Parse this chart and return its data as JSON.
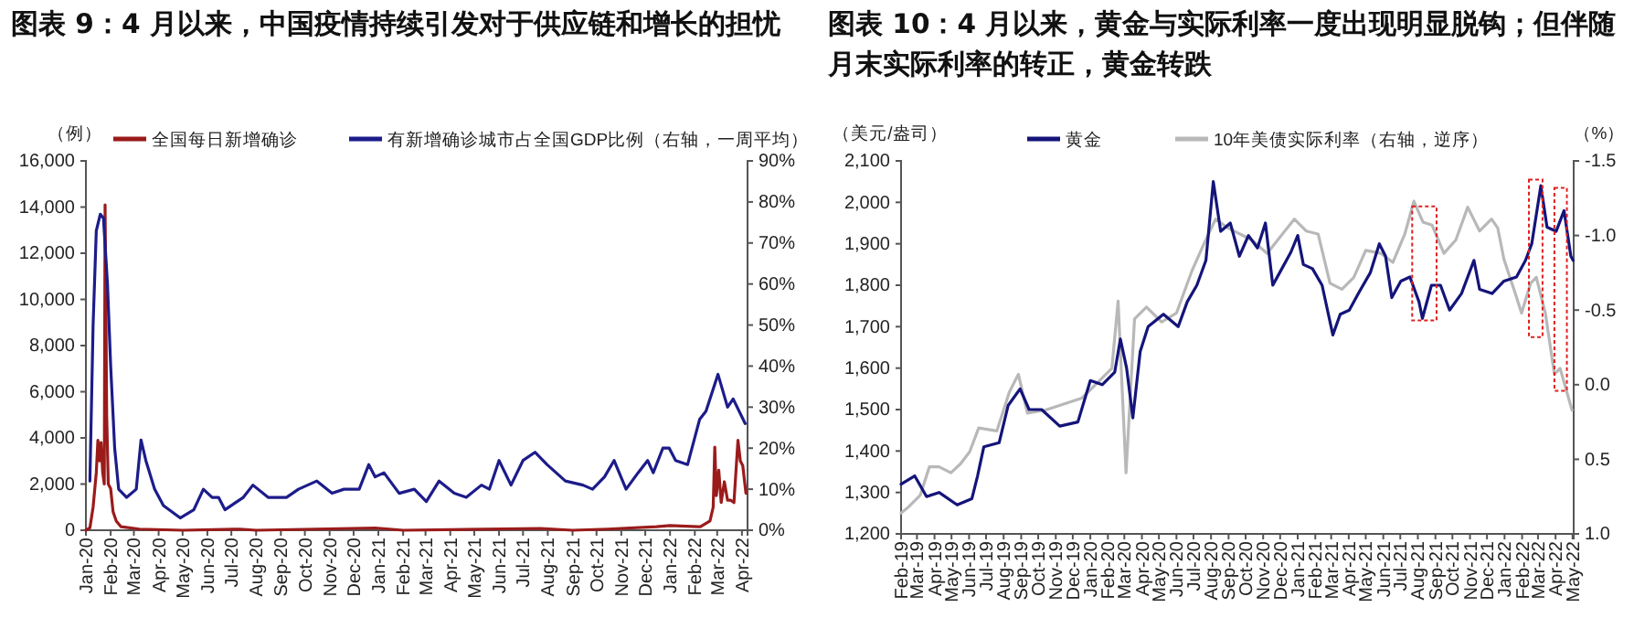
{
  "chart_data": [
    {
      "type": "line",
      "title": "图表 9：4 月以来，中国疫情持续引发对于供应链和增长的担忧",
      "ylabel": "（例）",
      "legend": "top",
      "xlim": [
        "2020-01-01",
        "2022-04-08"
      ],
      "xticks": [
        {
          "value": "2020-01-01",
          "label": "Jan-20"
        },
        {
          "value": "2020-02-01",
          "label": "Feb-20"
        },
        {
          "value": "2020-03-01",
          "label": "Mar-20"
        },
        {
          "value": "2020-04-01",
          "label": "Apr-20"
        },
        {
          "value": "2020-05-01",
          "label": "May-20"
        },
        {
          "value": "2020-06-01",
          "label": "Jun-20"
        },
        {
          "value": "2020-07-01",
          "label": "Jul-20"
        },
        {
          "value": "2020-08-01",
          "label": "Aug-20"
        },
        {
          "value": "2020-09-01",
          "label": "Sep-20"
        },
        {
          "value": "2020-10-01",
          "label": "Oct-20"
        },
        {
          "value": "2020-11-01",
          "label": "Nov-20"
        },
        {
          "value": "2020-12-01",
          "label": "Dec-20"
        },
        {
          "value": "2021-01-01",
          "label": "Jan-21"
        },
        {
          "value": "2021-02-01",
          "label": "Feb-21"
        },
        {
          "value": "2021-03-01",
          "label": "Mar-21"
        },
        {
          "value": "2021-04-01",
          "label": "Apr-21"
        },
        {
          "value": "2021-05-01",
          "label": "May-21"
        },
        {
          "value": "2021-06-01",
          "label": "Jun-21"
        },
        {
          "value": "2021-07-01",
          "label": "Jul-21"
        },
        {
          "value": "2021-08-01",
          "label": "Aug-21"
        },
        {
          "value": "2021-09-01",
          "label": "Sep-21"
        },
        {
          "value": "2021-10-01",
          "label": "Oct-21"
        },
        {
          "value": "2021-11-01",
          "label": "Nov-21"
        },
        {
          "value": "2021-12-01",
          "label": "Dec-21"
        },
        {
          "value": "2022-01-01",
          "label": "Jan-22"
        },
        {
          "value": "2022-02-01",
          "label": "Feb-22"
        },
        {
          "value": "2022-03-01",
          "label": "Mar-22"
        },
        {
          "value": "2022-04-01",
          "label": "Apr-22"
        }
      ],
      "ylim": [
        0,
        16000
      ],
      "yticks": [
        0,
        {
          "value": 2000,
          "label": "2,000"
        },
        {
          "value": 4000,
          "label": "4,000"
        },
        {
          "value": 6000,
          "label": "6,000"
        },
        {
          "value": 8000,
          "label": "8,000"
        },
        {
          "value": 10000,
          "label": "10,000"
        },
        {
          "value": 12000,
          "label": "12,000"
        },
        {
          "value": 14000,
          "label": "14,000"
        },
        {
          "value": 16000,
          "label": "16,000"
        }
      ],
      "y2lim": [
        0,
        90
      ],
      "y2ticks": [
        {
          "value": 0,
          "label": "0%"
        },
        {
          "value": 10,
          "label": "10%"
        },
        {
          "value": 20,
          "label": "20%"
        },
        {
          "value": 30,
          "label": "30%"
        },
        {
          "value": 40,
          "label": "40%"
        },
        {
          "value": 50,
          "label": "50%"
        },
        {
          "value": 60,
          "label": "60%"
        },
        {
          "value": 70,
          "label": "70%"
        },
        {
          "value": 80,
          "label": "80%"
        },
        {
          "value": 90,
          "label": "90%"
        }
      ],
      "series": [
        {
          "name": "全国每日新增确诊",
          "color": "#9b1b1b",
          "x": [
            "2020-01-01",
            "2020-01-06",
            "2020-01-10",
            "2020-01-14",
            "2020-01-16",
            "2020-01-18",
            "2020-01-20",
            "2020-01-22",
            "2020-01-24",
            "2020-01-25",
            "2020-01-27",
            "2020-01-29",
            "2020-02-01",
            "2020-02-04",
            "2020-02-08",
            "2020-02-14",
            "2020-03-08",
            "2020-05-01",
            "2020-07-12",
            "2020-08-01",
            "2020-12-28",
            "2021-02-01",
            "2021-07-23",
            "2021-09-01",
            "2021-10-15",
            "2021-12-15",
            "2022-01-01",
            "2022-02-08",
            "2022-02-20",
            "2022-02-24",
            "2022-02-26",
            "2022-02-28",
            "2022-03-03",
            "2022-03-06",
            "2022-03-10",
            "2022-03-14",
            "2022-03-18",
            "2022-03-22",
            "2022-03-27",
            "2022-03-30",
            "2022-04-02",
            "2022-04-06"
          ],
          "values": [
            0,
            100,
            1000,
            2500,
            3900,
            3000,
            3800,
            2500,
            2000,
            14100,
            5000,
            2000,
            1800,
            800,
            400,
            150,
            50,
            0,
            50,
            0,
            100,
            0,
            80,
            0,
            50,
            150,
            200,
            150,
            400,
            1000,
            3600,
            1500,
            2600,
            1200,
            2100,
            1300,
            1300,
            1200,
            3900,
            3000,
            2800,
            1600
          ]
        },
        {
          "name": "有新增确诊城市占全国GDP比例（右轴，一周平均）",
          "color": "#1c1c8a",
          "axis": "y2",
          "x": [
            "2020-01-06",
            "2020-01-10",
            "2020-01-14",
            "2020-01-19",
            "2020-01-23",
            "2020-01-28",
            "2020-02-01",
            "2020-02-06",
            "2020-02-11",
            "2020-02-21",
            "2020-03-04",
            "2020-03-10",
            "2020-03-16",
            "2020-03-27",
            "2020-04-07",
            "2020-04-28",
            "2020-05-15",
            "2020-05-27",
            "2020-06-07",
            "2020-06-15",
            "2020-06-23",
            "2020-07-16",
            "2020-07-28",
            "2020-08-16",
            "2020-09-08",
            "2020-09-23",
            "2020-10-16",
            "2020-11-04",
            "2020-11-19",
            "2020-12-08",
            "2020-12-20",
            "2020-12-28",
            "2021-01-08",
            "2021-01-27",
            "2021-02-15",
            "2021-03-02",
            "2021-03-18",
            "2021-04-06",
            "2021-04-21",
            "2021-05-10",
            "2021-05-20",
            "2021-06-01",
            "2021-06-16",
            "2021-07-01",
            "2021-07-16",
            "2021-07-31",
            "2021-08-23",
            "2021-09-14",
            "2021-09-26",
            "2021-10-11",
            "2021-10-23",
            "2021-11-07",
            "2021-11-22",
            "2021-12-04",
            "2021-12-11",
            "2021-12-23",
            "2021-12-31",
            "2022-01-08",
            "2022-01-23",
            "2022-02-07",
            "2022-02-15",
            "2022-03-02",
            "2022-03-14",
            "2022-03-21",
            "2022-04-05"
          ],
          "values": [
            12,
            50,
            73,
            77,
            76,
            60,
            40,
            20,
            10,
            8,
            10,
            22,
            17,
            10,
            6,
            3,
            5,
            10,
            8,
            8,
            5,
            8,
            11,
            8,
            8,
            10,
            12,
            9,
            10,
            10,
            16,
            13,
            14,
            9,
            10,
            7,
            12,
            9,
            8,
            11,
            10,
            17,
            11,
            17,
            19,
            16,
            12,
            11,
            10,
            13,
            17,
            10,
            14,
            17,
            14,
            20,
            20,
            17,
            16,
            27,
            29,
            38,
            30,
            32,
            26
          ]
        }
      ]
    },
    {
      "type": "line",
      "title": "图表 10：4 月以来，黄金与实际利率一度出现明显脱钩；但伴随月末实际利率的转正，黄金转跌",
      "ylabel": "（美元/盎司）",
      "y2label": "（%）",
      "legend": "top",
      "xlim": [
        "2019-02-01",
        "2022-05-03"
      ],
      "xticks": [
        {
          "value": "2019-02-01",
          "label": "Feb-19"
        },
        {
          "value": "2019-03-01",
          "label": "Mar-19"
        },
        {
          "value": "2019-04-01",
          "label": "Apr-19"
        },
        {
          "value": "2019-05-01",
          "label": "May-19"
        },
        {
          "value": "2019-06-01",
          "label": "Jun-19"
        },
        {
          "value": "2019-07-01",
          "label": "Jul-19"
        },
        {
          "value": "2019-08-01",
          "label": "Aug-19"
        },
        {
          "value": "2019-09-01",
          "label": "Sep-19"
        },
        {
          "value": "2019-10-01",
          "label": "Oct-19"
        },
        {
          "value": "2019-11-01",
          "label": "Nov-19"
        },
        {
          "value": "2019-12-01",
          "label": "Dec-19"
        },
        {
          "value": "2020-01-01",
          "label": "Jan-20"
        },
        {
          "value": "2020-02-01",
          "label": "Feb-20"
        },
        {
          "value": "2020-03-01",
          "label": "Mar-20"
        },
        {
          "value": "2020-04-01",
          "label": "Apr-20"
        },
        {
          "value": "2020-05-01",
          "label": "May-20"
        },
        {
          "value": "2020-06-01",
          "label": "Jun-20"
        },
        {
          "value": "2020-07-01",
          "label": "Jul-20"
        },
        {
          "value": "2020-08-01",
          "label": "Aug-20"
        },
        {
          "value": "2020-09-01",
          "label": "Sep-20"
        },
        {
          "value": "2020-10-01",
          "label": "Oct-20"
        },
        {
          "value": "2020-11-01",
          "label": "Nov-20"
        },
        {
          "value": "2020-12-01",
          "label": "Dec-20"
        },
        {
          "value": "2021-01-01",
          "label": "Jan-21"
        },
        {
          "value": "2021-02-01",
          "label": "Feb-21"
        },
        {
          "value": "2021-03-01",
          "label": "Mar-21"
        },
        {
          "value": "2021-04-01",
          "label": "Apr-21"
        },
        {
          "value": "2021-05-01",
          "label": "May-21"
        },
        {
          "value": "2021-06-01",
          "label": "Jun-21"
        },
        {
          "value": "2021-07-01",
          "label": "Jul-21"
        },
        {
          "value": "2021-08-01",
          "label": "Aug-21"
        },
        {
          "value": "2021-09-01",
          "label": "Sep-21"
        },
        {
          "value": "2021-10-01",
          "label": "Oct-21"
        },
        {
          "value": "2021-11-01",
          "label": "Nov-21"
        },
        {
          "value": "2021-12-01",
          "label": "Dec-21"
        },
        {
          "value": "2022-01-01",
          "label": "Jan-22"
        },
        {
          "value": "2022-02-01",
          "label": "Feb-22"
        },
        {
          "value": "2022-03-01",
          "label": "Mar-22"
        },
        {
          "value": "2022-04-01",
          "label": "Apr-22"
        },
        {
          "value": "2022-05-01",
          "label": "May-22"
        }
      ],
      "ylim": [
        1200,
        2100
      ],
      "yticks": [
        {
          "value": 1200,
          "label": "1,200"
        },
        {
          "value": 1300,
          "label": "1,300"
        },
        {
          "value": 1400,
          "label": "1,400"
        },
        {
          "value": 1500,
          "label": "1,500"
        },
        {
          "value": 1600,
          "label": "1,600"
        },
        {
          "value": 1700,
          "label": "1,700"
        },
        {
          "value": 1800,
          "label": "1,800"
        },
        {
          "value": 1900,
          "label": "1,900"
        },
        {
          "value": 2000,
          "label": "2,000"
        },
        {
          "value": 2100,
          "label": "2,100"
        }
      ],
      "y2lim": [
        1.0,
        -1.5
      ],
      "y2ticks": [
        {
          "value": -1.5,
          "label": "-1.5"
        },
        {
          "value": -1.0,
          "label": "-1.0"
        },
        {
          "value": -0.5,
          "label": "-0.5"
        },
        {
          "value": 0,
          "label": "0.0"
        },
        {
          "value": 0.5,
          "label": "0.5"
        },
        {
          "value": 1.0,
          "label": "1.0"
        }
      ],
      "series": [
        {
          "name": "黄金",
          "color": "#14147a",
          "x": [
            "2019-02-01",
            "2019-02-25",
            "2019-03-18",
            "2019-04-09",
            "2019-05-11",
            "2019-06-06",
            "2019-06-16",
            "2019-06-27",
            "2019-07-24",
            "2019-08-09",
            "2019-08-30",
            "2019-09-15",
            "2019-10-07",
            "2019-11-08",
            "2019-12-10",
            "2020-01-01",
            "2020-01-22",
            "2020-02-13",
            "2020-02-23",
            "2020-03-05",
            "2020-03-16",
            "2020-03-29",
            "2020-04-12",
            "2020-05-09",
            "2020-06-04",
            "2020-06-20",
            "2020-07-07",
            "2020-07-23",
            "2020-08-05",
            "2020-08-18",
            "2020-09-04",
            "2020-09-20",
            "2020-10-06",
            "2020-10-22",
            "2020-11-05",
            "2020-11-18",
            "2020-12-04",
            "2020-12-20",
            "2021-01-01",
            "2021-01-11",
            "2021-01-27",
            "2021-02-13",
            "2021-03-04",
            "2021-03-17",
            "2021-04-02",
            "2021-04-18",
            "2021-05-09",
            "2021-05-25",
            "2021-06-05",
            "2021-06-16",
            "2021-07-02",
            "2021-07-18",
            "2021-08-03",
            "2021-08-09",
            "2021-08-25",
            "2021-09-10",
            "2021-09-26",
            "2021-10-17",
            "2021-11-08",
            "2021-11-18",
            "2021-12-10",
            "2021-12-31",
            "2022-01-22",
            "2022-02-07",
            "2022-02-18",
            "2022-03-06",
            "2022-03-17",
            "2022-04-02",
            "2022-04-16",
            "2022-04-28",
            "2022-05-02"
          ],
          "values": [
            1320,
            1340,
            1290,
            1300,
            1270,
            1285,
            1340,
            1410,
            1420,
            1510,
            1550,
            1500,
            1500,
            1460,
            1470,
            1570,
            1560,
            1590,
            1670,
            1600,
            1480,
            1640,
            1700,
            1730,
            1700,
            1760,
            1800,
            1860,
            2050,
            1930,
            1950,
            1870,
            1920,
            1890,
            1950,
            1800,
            1840,
            1880,
            1920,
            1850,
            1840,
            1800,
            1680,
            1730,
            1740,
            1780,
            1830,
            1900,
            1870,
            1770,
            1810,
            1820,
            1760,
            1720,
            1800,
            1800,
            1740,
            1780,
            1860,
            1790,
            1780,
            1810,
            1820,
            1860,
            1900,
            2040,
            1940,
            1930,
            1980,
            1870,
            1860
          ]
        },
        {
          "name": "10年美债实际利率（右轴，逆序）",
          "color": "#b8b8b8",
          "axis": "y2",
          "x": [
            "2019-02-01",
            "2019-02-14",
            "2019-03-07",
            "2019-03-23",
            "2019-04-09",
            "2019-04-30",
            "2019-05-17",
            "2019-06-02",
            "2019-06-18",
            "2019-07-20",
            "2019-08-11",
            "2019-08-27",
            "2019-09-12",
            "2019-10-14",
            "2019-11-15",
            "2019-12-17",
            "2020-01-18",
            "2020-02-08",
            "2020-02-19",
            "2020-03-04",
            "2020-03-19",
            "2020-04-09",
            "2020-05-06",
            "2020-06-01",
            "2020-06-28",
            "2020-07-19",
            "2020-08-09",
            "2020-08-31",
            "2020-09-21",
            "2020-10-12",
            "2020-11-08",
            "2020-12-05",
            "2020-12-26",
            "2021-01-16",
            "2021-02-06",
            "2021-02-27",
            "2021-03-20",
            "2021-04-10",
            "2021-05-01",
            "2021-05-28",
            "2021-06-18",
            "2021-07-09",
            "2021-07-25",
            "2021-08-10",
            "2021-08-26",
            "2021-09-16",
            "2021-10-07",
            "2021-10-28",
            "2021-11-18",
            "2021-12-09",
            "2021-12-20",
            "2021-12-31",
            "2022-01-21",
            "2022-01-31",
            "2022-02-16",
            "2022-02-26",
            "2022-03-14",
            "2022-03-30",
            "2022-04-09",
            "2022-04-30"
          ],
          "values": [
            0.86,
            0.82,
            0.74,
            0.55,
            0.55,
            0.59,
            0.53,
            0.45,
            0.29,
            0.31,
            0.05,
            -0.07,
            0.19,
            0.17,
            0.13,
            0.09,
            -0.03,
            -0.11,
            -0.56,
            0.59,
            -0.44,
            -0.52,
            -0.42,
            -0.48,
            -0.76,
            -0.94,
            -1.11,
            -1.05,
            -1.01,
            -0.97,
            -0.88,
            -1.01,
            -1.11,
            -1.03,
            -1.01,
            -0.68,
            -0.64,
            -0.72,
            -0.9,
            -0.88,
            -0.82,
            -1.01,
            -1.23,
            -1.09,
            -1.07,
            -0.88,
            -0.97,
            -1.19,
            -1.03,
            -1.11,
            -1.05,
            -0.84,
            -0.6,
            -0.48,
            -0.68,
            -0.72,
            -0.48,
            -0.07,
            -0.11,
            0.17
          ]
        }
      ]
    }
  ]
}
